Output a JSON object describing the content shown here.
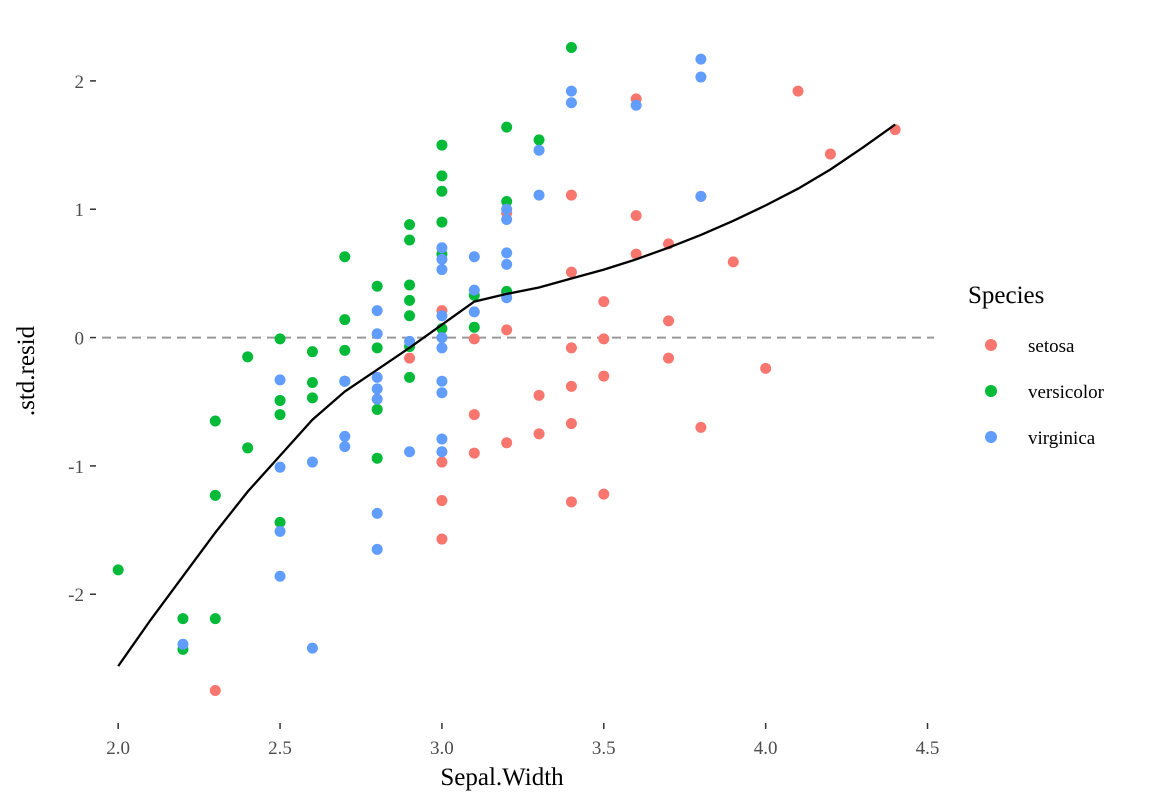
{
  "chart_data": {
    "type": "scatter",
    "xlabel": "Sepal.Width",
    "ylabel": ".std.resid",
    "xlim": [
      1.95,
      4.52
    ],
    "ylim": [
      -2.98,
      2.42
    ],
    "x_ticks": [
      2.0,
      2.5,
      3.0,
      3.5,
      4.0,
      4.5
    ],
    "x_tick_labels": [
      "2.0",
      "2.5",
      "3.0",
      "3.5",
      "4.0",
      "4.5"
    ],
    "y_ticks": [
      -2,
      -1,
      0,
      1,
      2
    ],
    "y_tick_labels": [
      "-2",
      "-1",
      "0",
      "1",
      "2"
    ],
    "grid": false,
    "reference_line": {
      "y": 0,
      "style": "dashed",
      "color": "#999999"
    },
    "legend": {
      "title": "Species",
      "position": "right",
      "entries": [
        {
          "label": "setosa",
          "color": "#F8766D"
        },
        {
          "label": "versicolor",
          "color": "#00BA38"
        },
        {
          "label": "virginica",
          "color": "#619CFF"
        }
      ]
    },
    "series": [
      {
        "name": "setosa",
        "color": "#F8766D",
        "points": [
          [
            2.3,
            -2.75
          ],
          [
            2.9,
            -0.16
          ],
          [
            3.0,
            0.21
          ],
          [
            3.0,
            -0.97
          ],
          [
            3.0,
            -1.27
          ],
          [
            3.0,
            -1.57
          ],
          [
            3.1,
            -0.01
          ],
          [
            3.1,
            -0.6
          ],
          [
            3.1,
            -0.9
          ],
          [
            3.2,
            0.97
          ],
          [
            3.2,
            0.35
          ],
          [
            3.2,
            0.06
          ],
          [
            3.2,
            -0.82
          ],
          [
            3.3,
            -0.45
          ],
          [
            3.3,
            -0.75
          ],
          [
            3.4,
            1.11
          ],
          [
            3.4,
            0.51
          ],
          [
            3.4,
            -0.08
          ],
          [
            3.4,
            -0.38
          ],
          [
            3.4,
            -0.67
          ],
          [
            3.4,
            -1.28
          ],
          [
            3.5,
            0.28
          ],
          [
            3.5,
            -0.01
          ],
          [
            3.5,
            -0.3
          ],
          [
            3.5,
            -1.22
          ],
          [
            3.6,
            1.86
          ],
          [
            3.6,
            0.95
          ],
          [
            3.6,
            0.65
          ],
          [
            3.7,
            0.73
          ],
          [
            3.7,
            0.13
          ],
          [
            3.7,
            -0.16
          ],
          [
            3.8,
            1.1
          ],
          [
            3.8,
            -0.7
          ],
          [
            3.9,
            0.59
          ],
          [
            4.0,
            -0.24
          ],
          [
            4.1,
            1.92
          ],
          [
            4.2,
            1.43
          ],
          [
            4.4,
            1.62
          ]
        ]
      },
      {
        "name": "versicolor",
        "color": "#00BA38",
        "points": [
          [
            2.0,
            -1.81
          ],
          [
            2.2,
            -2.19
          ],
          [
            2.2,
            -2.43
          ],
          [
            2.3,
            -0.65
          ],
          [
            2.3,
            -1.23
          ],
          [
            2.3,
            -2.19
          ],
          [
            2.4,
            -0.15
          ],
          [
            2.4,
            -0.86
          ],
          [
            2.5,
            -0.01
          ],
          [
            2.5,
            -0.49
          ],
          [
            2.5,
            -0.6
          ],
          [
            2.5,
            -1.44
          ],
          [
            2.6,
            -0.11
          ],
          [
            2.6,
            -0.35
          ],
          [
            2.6,
            -0.47
          ],
          [
            2.7,
            0.63
          ],
          [
            2.7,
            0.14
          ],
          [
            2.7,
            -0.1
          ],
          [
            2.7,
            -0.34
          ],
          [
            2.8,
            0.4
          ],
          [
            2.8,
            -0.08
          ],
          [
            2.8,
            -0.56
          ],
          [
            2.8,
            -0.94
          ],
          [
            2.9,
            0.88
          ],
          [
            2.9,
            0.76
          ],
          [
            2.9,
            0.41
          ],
          [
            2.9,
            0.29
          ],
          [
            2.9,
            0.17
          ],
          [
            2.9,
            -0.07
          ],
          [
            2.9,
            -0.31
          ],
          [
            3.0,
            1.5
          ],
          [
            3.0,
            1.26
          ],
          [
            3.0,
            1.14
          ],
          [
            3.0,
            0.9
          ],
          [
            3.0,
            0.65
          ],
          [
            3.0,
            0.07
          ],
          [
            3.1,
            0.33
          ],
          [
            3.1,
            0.08
          ],
          [
            3.2,
            1.64
          ],
          [
            3.2,
            1.06
          ],
          [
            3.2,
            0.36
          ],
          [
            3.3,
            1.54
          ],
          [
            3.4,
            2.26
          ]
        ]
      },
      {
        "name": "virginica",
        "color": "#619CFF",
        "points": [
          [
            2.2,
            -2.39
          ],
          [
            2.5,
            -0.33
          ],
          [
            2.5,
            -1.01
          ],
          [
            2.5,
            -1.51
          ],
          [
            2.5,
            -1.86
          ],
          [
            2.6,
            -0.97
          ],
          [
            2.6,
            -2.42
          ],
          [
            2.7,
            -0.34
          ],
          [
            2.7,
            -0.77
          ],
          [
            2.7,
            -0.85
          ],
          [
            2.8,
            0.21
          ],
          [
            2.8,
            0.03
          ],
          [
            2.8,
            -0.31
          ],
          [
            2.8,
            -0.4
          ],
          [
            2.8,
            -0.48
          ],
          [
            2.8,
            -1.37
          ],
          [
            2.8,
            -1.65
          ],
          [
            2.9,
            -0.03
          ],
          [
            2.9,
            -0.89
          ],
          [
            3.0,
            0.7
          ],
          [
            3.0,
            0.61
          ],
          [
            3.0,
            0.53
          ],
          [
            3.0,
            0.17
          ],
          [
            3.0,
            0.0
          ],
          [
            3.0,
            -0.08
          ],
          [
            3.0,
            -0.34
          ],
          [
            3.0,
            -0.43
          ],
          [
            3.0,
            -0.79
          ],
          [
            3.0,
            -0.89
          ],
          [
            3.1,
            0.63
          ],
          [
            3.1,
            0.37
          ],
          [
            3.1,
            0.2
          ],
          [
            3.2,
            1.0
          ],
          [
            3.2,
            0.92
          ],
          [
            3.2,
            0.66
          ],
          [
            3.2,
            0.57
          ],
          [
            3.2,
            0.31
          ],
          [
            3.3,
            1.46
          ],
          [
            3.3,
            1.11
          ],
          [
            3.4,
            1.92
          ],
          [
            3.4,
            1.83
          ],
          [
            3.6,
            1.81
          ],
          [
            3.8,
            2.17
          ],
          [
            3.8,
            2.03
          ],
          [
            3.8,
            1.1
          ]
        ]
      }
    ],
    "smooth_line": {
      "color": "#000000",
      "points": [
        [
          2.0,
          -2.56
        ],
        [
          2.1,
          -2.2
        ],
        [
          2.2,
          -1.86
        ],
        [
          2.3,
          -1.52
        ],
        [
          2.4,
          -1.2
        ],
        [
          2.5,
          -0.92
        ],
        [
          2.6,
          -0.64
        ],
        [
          2.7,
          -0.42
        ],
        [
          2.8,
          -0.25
        ],
        [
          2.9,
          -0.08
        ],
        [
          3.0,
          0.1
        ],
        [
          3.1,
          0.28
        ],
        [
          3.2,
          0.34
        ],
        [
          3.3,
          0.39
        ],
        [
          3.4,
          0.46
        ],
        [
          3.5,
          0.53
        ],
        [
          3.6,
          0.61
        ],
        [
          3.7,
          0.7
        ],
        [
          3.8,
          0.8
        ],
        [
          3.9,
          0.91
        ],
        [
          4.0,
          1.03
        ],
        [
          4.1,
          1.16
        ],
        [
          4.2,
          1.31
        ],
        [
          4.3,
          1.48
        ],
        [
          4.4,
          1.66
        ]
      ]
    }
  }
}
